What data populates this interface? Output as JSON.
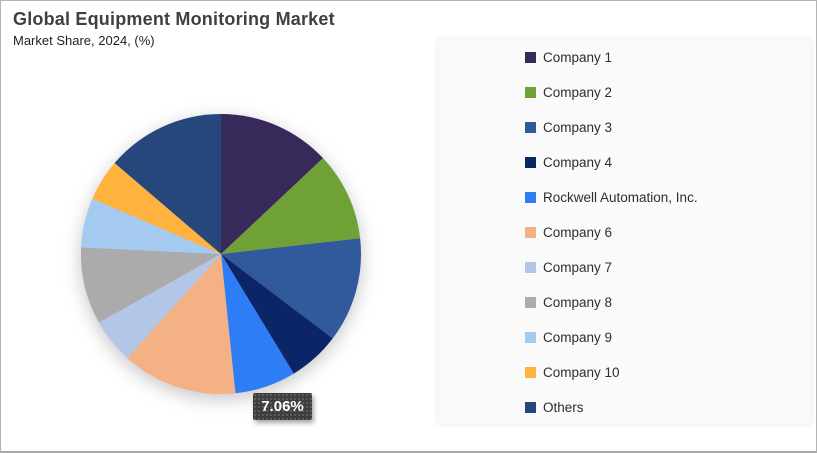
{
  "header": {
    "title": "Global Equipment Monitoring Market",
    "subtitle": "Market Share, 2024, (%)"
  },
  "chart_data": {
    "type": "pie",
    "title": "Global Equipment Monitoring Market",
    "subtitle": "Market Share, 2024, (%)",
    "unit": "%",
    "legend_position": "right",
    "start_angle_deg": 0,
    "direction": "clockwise",
    "labels": [
      "Company 1",
      "Company 2",
      "Company 3",
      "Company 4",
      "Rockwell Automation, Inc.",
      "Company 6",
      "Company 7",
      "Company 8",
      "Company 9",
      "Company 10",
      "Others"
    ],
    "values": [
      13.0,
      10.2,
      12.1,
      6.0,
      7.06,
      13.3,
      5.2,
      8.9,
      5.7,
      4.8,
      13.74
    ],
    "colors": [
      "#38295B",
      "#6FA136",
      "#315A9C",
      "#0B2567",
      "#2E7DF7",
      "#F4B183",
      "#B4C6E7",
      "#ABABAB",
      "#A4CBEF",
      "#FFB23E",
      "#25477B"
    ],
    "data_labels": [
      {
        "series": "Rockwell Automation, Inc.",
        "text": "7.06%"
      }
    ]
  },
  "data_label": {
    "text": "7.06%"
  }
}
